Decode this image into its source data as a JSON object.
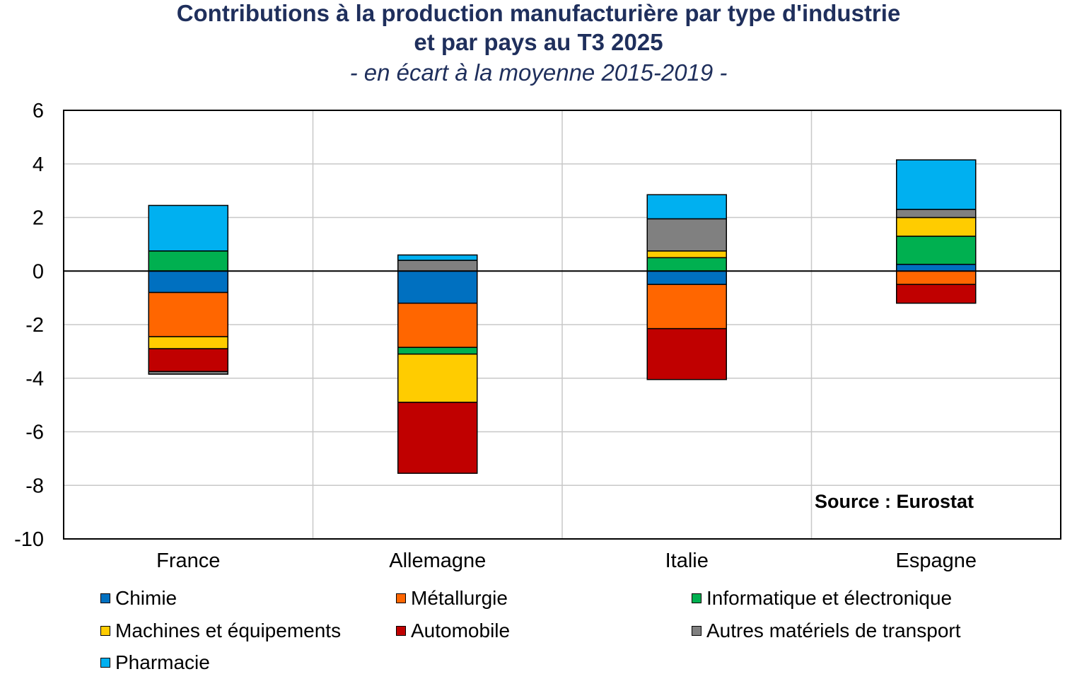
{
  "chart_data": {
    "type": "bar",
    "stacked": true,
    "title": "Contributions à la production manufacturière par type d'industrie",
    "title_line2": "et par pays au T3 2025",
    "subtitle": "- en écart à la moyenne 2015-2019 -",
    "xlabel": "",
    "ylabel": "",
    "ylim": [
      -10,
      6
    ],
    "yticks": [
      6,
      4,
      2,
      0,
      -2,
      -4,
      -6,
      -8,
      -10
    ],
    "ytick_labels": [
      "6",
      "4",
      "2",
      "0",
      "-2",
      "-4",
      "-6",
      "-8",
      "-10"
    ],
    "grid": true,
    "legend_position": "bottom",
    "annotation": "Source : Eurostat",
    "categories": [
      "France",
      "Allemagne",
      "Italie",
      "Espagne"
    ],
    "series": [
      {
        "name": "Chimie",
        "color": "#0070c0",
        "values": [
          -0.8,
          -1.2,
          -0.5,
          0.25
        ]
      },
      {
        "name": "Métallurgie",
        "color": "#ff6600",
        "values": [
          -1.65,
          -1.65,
          -1.65,
          -0.5
        ]
      },
      {
        "name": "Informatique et électronique",
        "color": "#00b050",
        "values": [
          0.75,
          -0.25,
          0.5,
          1.05
        ]
      },
      {
        "name": "Machines et équipements",
        "color": "#ffcc00",
        "values": [
          -0.45,
          -1.8,
          0.25,
          0.7
        ]
      },
      {
        "name": "Automobile",
        "color": "#c00000",
        "values": [
          -0.85,
          -2.65,
          -1.9,
          -0.7
        ]
      },
      {
        "name": "Autres matériels de transport",
        "color": "#808080",
        "values": [
          -0.1,
          0.4,
          1.2,
          0.3
        ]
      },
      {
        "name": "Pharmacie",
        "color": "#00b0f0",
        "values": [
          1.7,
          0.2,
          0.9,
          1.85
        ]
      }
    ]
  }
}
